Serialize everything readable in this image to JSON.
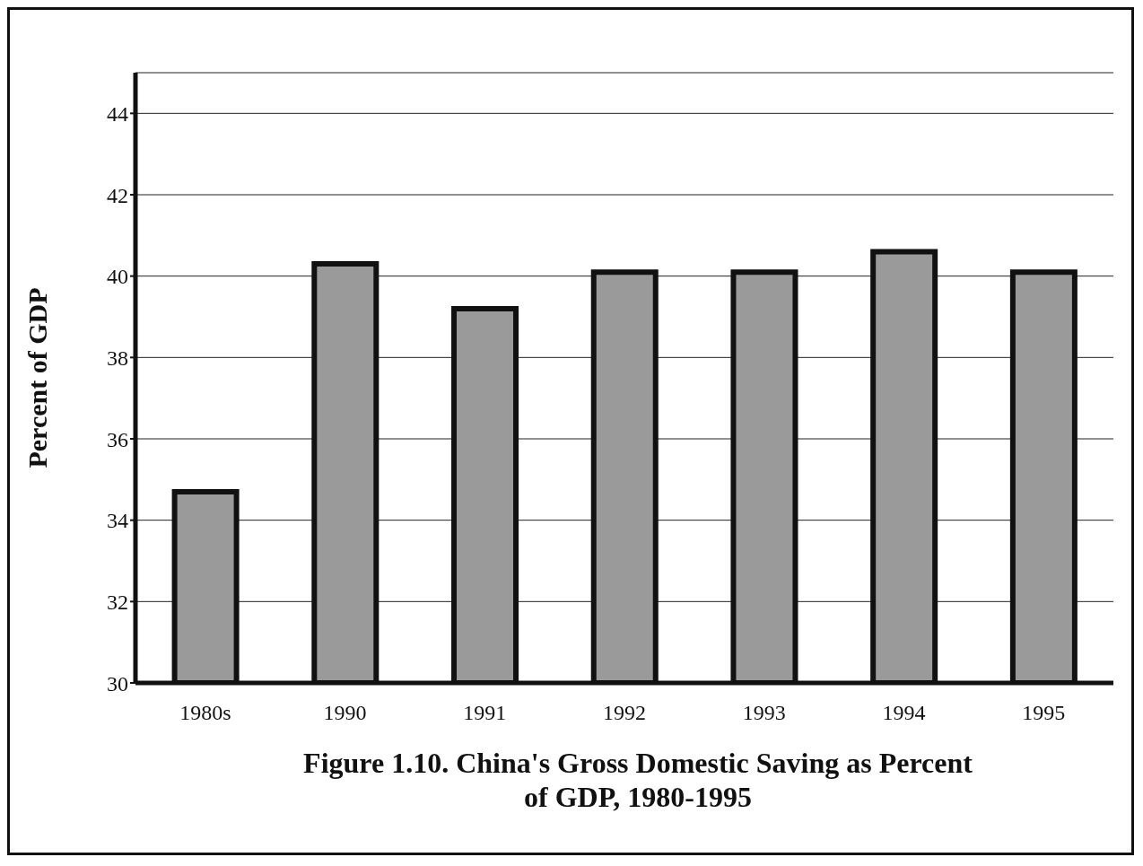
{
  "chart_data": {
    "type": "bar",
    "title": "Figure 1.10. China's Gross Domestic Saving as Percent of GDP, 1980-1995",
    "ylabel": "Percent of GDP",
    "categories": [
      "1980s",
      "1990",
      "1991",
      "1992",
      "1993",
      "1994",
      "1995"
    ],
    "values": [
      34.7,
      40.3,
      39.2,
      40.1,
      40.1,
      40.6,
      40.1
    ],
    "color": "#9a9a9a",
    "ylim": [
      30,
      45
    ],
    "yticks": [
      30,
      32,
      34,
      36,
      38,
      40,
      42,
      44
    ],
    "grid": "y"
  }
}
